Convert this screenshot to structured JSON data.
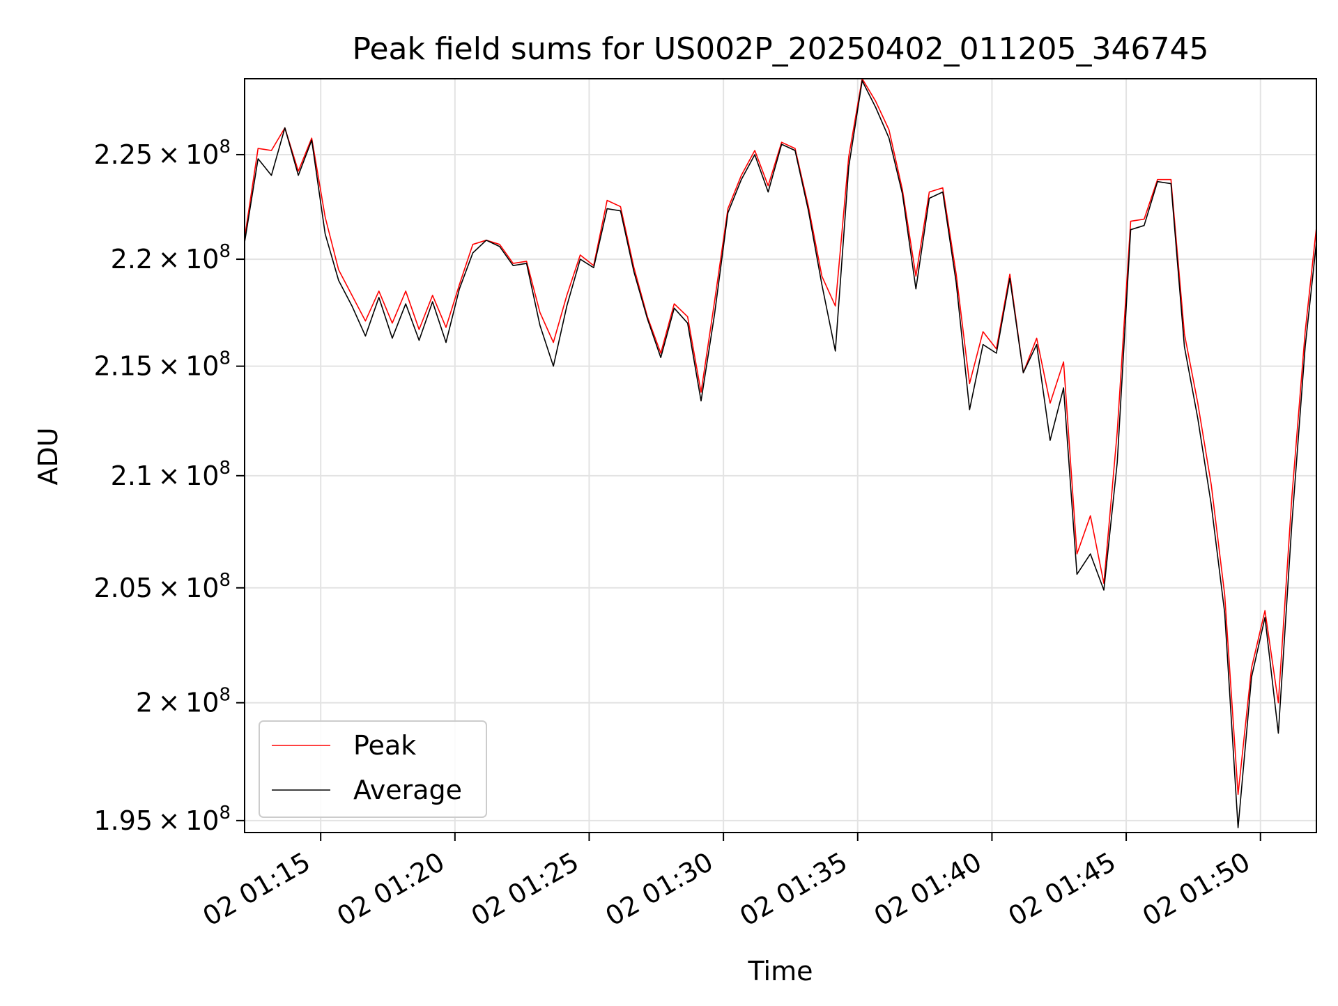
{
  "chart_data": {
    "type": "line",
    "title": "Peak field sums for US002P_20250402_011205_346745",
    "xlabel": "Time",
    "ylabel": "ADU",
    "y_scale": "log",
    "ylim": [
      194500000,
      228700000
    ],
    "xlim": [
      "02 01:12:10",
      "02 01:52:05"
    ],
    "grid": true,
    "legend_position": "lower-left",
    "x_ticks": [
      {
        "t": "02 01:15:00",
        "label": "02 01:15"
      },
      {
        "t": "02 01:20:00",
        "label": "02 01:20"
      },
      {
        "t": "02 01:25:00",
        "label": "02 01:25"
      },
      {
        "t": "02 01:30:00",
        "label": "02 01:30"
      },
      {
        "t": "02 01:35:00",
        "label": "02 01:35"
      },
      {
        "t": "02 01:40:00",
        "label": "02 01:40"
      },
      {
        "t": "02 01:45:00",
        "label": "02 01:45"
      },
      {
        "t": "02 01:50:00",
        "label": "02 01:50"
      }
    ],
    "y_ticks": [
      {
        "v": 195000000,
        "mant": "1.95",
        "exp": "8"
      },
      {
        "v": 200000000,
        "mant": "2",
        "exp": "8"
      },
      {
        "v": 205000000,
        "mant": "2.05",
        "exp": "8"
      },
      {
        "v": 210000000,
        "mant": "2.1",
        "exp": "8"
      },
      {
        "v": 215000000,
        "mant": "2.15",
        "exp": "8"
      },
      {
        "v": 220000000,
        "mant": "2.2",
        "exp": "8"
      },
      {
        "v": 225000000,
        "mant": "2.25",
        "exp": "8"
      }
    ],
    "x": [
      "02 01:12:10",
      "02 01:12:40",
      "02 01:13:10",
      "02 01:13:40",
      "02 01:14:10",
      "02 01:14:40",
      "02 01:15:10",
      "02 01:15:40",
      "02 01:16:10",
      "02 01:16:40",
      "02 01:17:10",
      "02 01:17:40",
      "02 01:18:10",
      "02 01:18:40",
      "02 01:19:10",
      "02 01:19:40",
      "02 01:20:10",
      "02 01:20:40",
      "02 01:21:10",
      "02 01:21:40",
      "02 01:22:10",
      "02 01:22:40",
      "02 01:23:10",
      "02 01:23:40",
      "02 01:24:10",
      "02 01:24:40",
      "02 01:25:10",
      "02 01:25:40",
      "02 01:26:10",
      "02 01:26:40",
      "02 01:27:10",
      "02 01:27:40",
      "02 01:28:10",
      "02 01:28:40",
      "02 01:29:10",
      "02 01:29:40",
      "02 01:30:10",
      "02 01:30:40",
      "02 01:31:10",
      "02 01:31:40",
      "02 01:32:10",
      "02 01:32:40",
      "02 01:33:10",
      "02 01:33:40",
      "02 01:34:10",
      "02 01:34:40",
      "02 01:35:10",
      "02 01:35:40",
      "02 01:36:10",
      "02 01:36:40",
      "02 01:37:10",
      "02 01:37:40",
      "02 01:38:10",
      "02 01:38:40",
      "02 01:39:10",
      "02 01:39:40",
      "02 01:40:10",
      "02 01:40:40",
      "02 01:41:10",
      "02 01:41:40",
      "02 01:42:10",
      "02 01:42:40",
      "02 01:43:10",
      "02 01:43:40",
      "02 01:44:10",
      "02 01:44:40",
      "02 01:45:10",
      "02 01:45:40",
      "02 01:46:10",
      "02 01:46:40",
      "02 01:47:10",
      "02 01:47:40",
      "02 01:48:10",
      "02 01:48:40",
      "02 01:49:10",
      "02 01:49:40",
      "02 01:50:10",
      "02 01:50:40",
      "02 01:51:10",
      "02 01:51:40",
      "02 01:52:05"
    ],
    "series": [
      {
        "name": "Peak",
        "color": "#ff0000",
        "values": [
          221000000,
          225300000,
          225200000,
          226300000,
          224200000,
          225800000,
          222000000,
          219500000,
          218300000,
          217100000,
          218500000,
          217000000,
          218500000,
          216700000,
          218300000,
          216800000,
          218800000,
          220700000,
          220900000,
          220700000,
          219800000,
          219900000,
          217500000,
          216100000,
          218300000,
          220200000,
          219700000,
          222800000,
          222500000,
          219600000,
          217300000,
          215600000,
          217900000,
          217300000,
          213800000,
          218000000,
          222400000,
          224000000,
          225200000,
          223500000,
          225600000,
          225300000,
          222500000,
          219200000,
          217800000,
          224900000,
          228700000,
          227600000,
          226200000,
          223300000,
          219200000,
          223200000,
          223400000,
          219300000,
          214200000,
          216600000,
          215800000,
          219300000,
          214700000,
          216300000,
          213300000,
          215200000,
          206500000,
          208200000,
          205200000,
          212000000,
          221800000,
          221900000,
          223800000,
          223800000,
          216500000,
          213300000,
          209600000,
          204700000,
          196100000,
          201500000,
          204000000,
          200000000,
          209000000,
          216600000,
          221500000
        ]
      },
      {
        "name": "Average",
        "color": "#000000",
        "values": [
          220800000,
          224800000,
          224000000,
          226300000,
          224000000,
          225700000,
          221200000,
          219000000,
          217800000,
          216400000,
          218200000,
          216300000,
          217900000,
          216200000,
          218000000,
          216100000,
          218600000,
          220300000,
          220900000,
          220600000,
          219700000,
          219800000,
          216900000,
          215000000,
          217800000,
          220000000,
          219600000,
          222400000,
          222300000,
          219400000,
          217200000,
          215400000,
          217700000,
          217000000,
          213400000,
          217400000,
          222200000,
          223800000,
          225000000,
          223200000,
          225500000,
          225200000,
          222300000,
          218800000,
          215700000,
          224400000,
          228600000,
          227300000,
          225800000,
          223100000,
          218600000,
          222900000,
          223200000,
          218900000,
          213000000,
          216000000,
          215600000,
          219100000,
          214700000,
          216000000,
          211600000,
          214000000,
          205600000,
          206500000,
          204900000,
          210600000,
          221400000,
          221600000,
          223700000,
          223600000,
          215900000,
          212600000,
          208700000,
          203900000,
          194700000,
          201100000,
          203700000,
          198700000,
          207800000,
          215900000,
          220800000
        ]
      }
    ]
  }
}
